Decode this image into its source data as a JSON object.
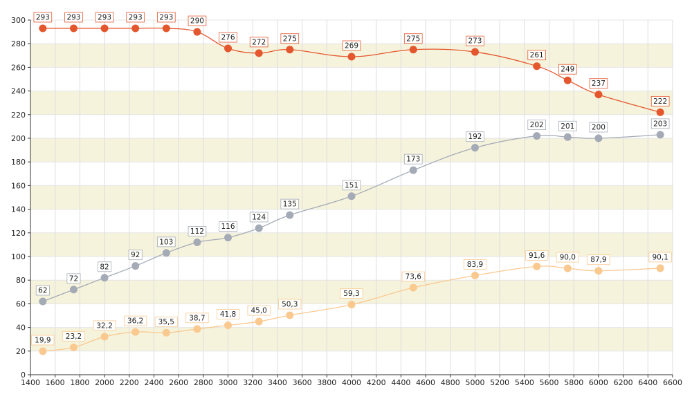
{
  "chart_data": {
    "type": "line",
    "title": "",
    "xlabel": "",
    "ylabel": "",
    "xlim": [
      1400,
      6600
    ],
    "ylim": [
      0,
      300
    ],
    "x_ticks": [
      1400,
      1600,
      1800,
      2000,
      2200,
      2400,
      2600,
      2800,
      3000,
      3200,
      3400,
      3600,
      3800,
      4000,
      4200,
      4400,
      4600,
      4800,
      5000,
      5200,
      5400,
      5600,
      5800,
      6000,
      6200,
      6400,
      6600
    ],
    "y_ticks": [
      0,
      20,
      40,
      60,
      80,
      100,
      120,
      140,
      160,
      180,
      200,
      220,
      240,
      260,
      280,
      300
    ],
    "grid": true,
    "band_colors": [
      "#ffffff",
      "#f6f3dc"
    ],
    "x": [
      1500,
      1750,
      2000,
      2250,
      2500,
      2750,
      3000,
      3250,
      3500,
      4000,
      4500,
      5000,
      5500,
      5750,
      6000,
      6500
    ],
    "series": [
      {
        "color": "#e4572e",
        "values": [
          293,
          293,
          293,
          293,
          293,
          290,
          276,
          272,
          275,
          269,
          275,
          273,
          261,
          249,
          237,
          222
        ],
        "labels": [
          "293",
          "293",
          "293",
          "293",
          "293",
          "290",
          "276",
          "272",
          "275",
          "269",
          "275",
          "273",
          "261",
          "249",
          "237",
          "222"
        ]
      },
      {
        "color": "#a4abb6",
        "values": [
          62,
          72,
          82,
          92,
          103,
          112,
          116,
          124,
          135,
          151,
          173,
          192,
          202,
          201,
          200,
          203
        ],
        "labels": [
          "62",
          "72",
          "82",
          "92",
          "103",
          "112",
          "116",
          "124",
          "135",
          "151",
          "173",
          "192",
          "202",
          "201",
          "200",
          "203"
        ]
      },
      {
        "color": "#f9c98f",
        "values": [
          19.9,
          23.2,
          32.2,
          36.2,
          35.5,
          38.7,
          41.8,
          45.0,
          50.3,
          59.3,
          73.6,
          83.9,
          91.6,
          90.0,
          87.9,
          90.1
        ],
        "labels": [
          "19,9",
          "23,2",
          "32,2",
          "36,2",
          "35,5",
          "38,7",
          "41,8",
          "45,0",
          "50,3",
          "59,3",
          "73,6",
          "83,9",
          "91,6",
          "90,0",
          "87,9",
          "90,1"
        ]
      }
    ]
  }
}
